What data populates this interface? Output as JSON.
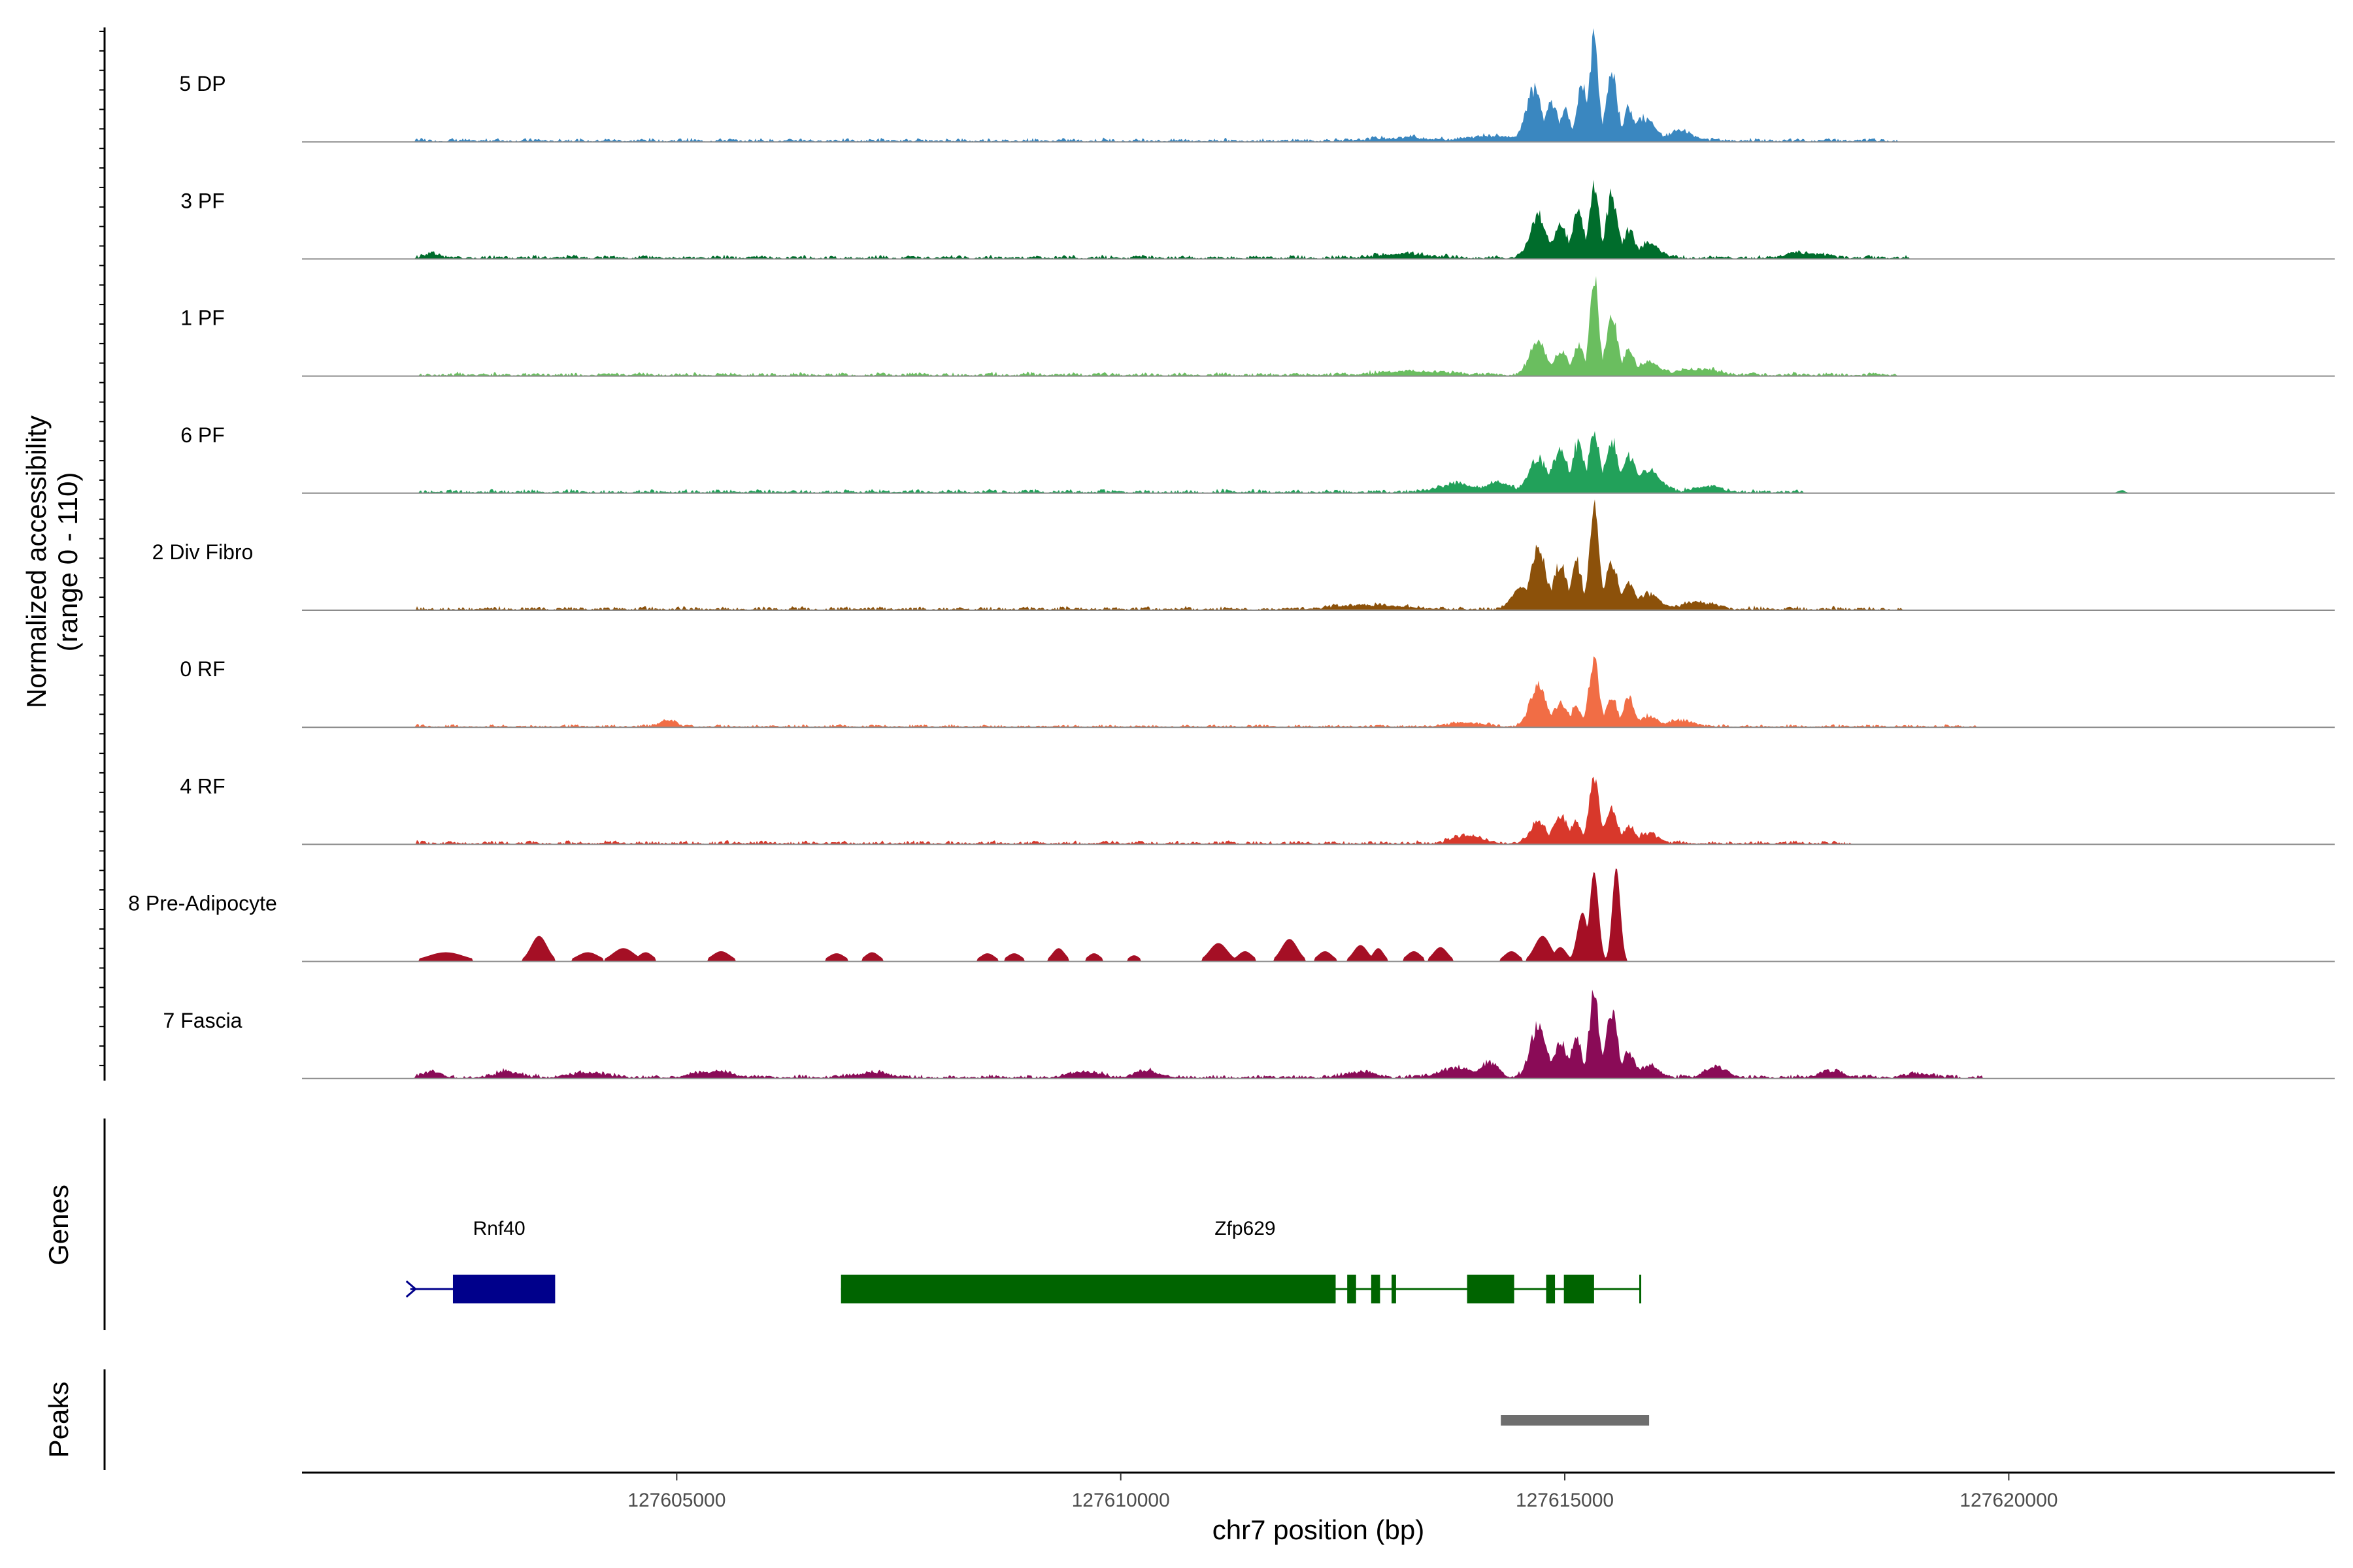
{
  "chart_data": {
    "type": "area",
    "title": "",
    "ylabel": [
      "Normalized accessibility",
      "(range 0 - 110)"
    ],
    "xlabel": "chr7 position (bp)",
    "ylim": [
      0,
      110
    ],
    "xlim": [
      127600780,
      127623670
    ],
    "xticks": [
      127605000,
      127610000,
      127615000,
      127620000
    ],
    "xtick_labels": [
      "127605000",
      "127610000",
      "127615000",
      "127620000"
    ],
    "tracks": [
      {
        "name": "5 DP",
        "color": "#3a87c0",
        "peaks": [
          [
            127613200,
            3,
            350
          ],
          [
            127614200,
            5,
            300
          ],
          [
            127614650,
            50,
            90
          ],
          [
            127614850,
            38,
            70
          ],
          [
            127615000,
            28,
            60
          ],
          [
            127615200,
            56,
            60
          ],
          [
            127615330,
            100,
            50
          ],
          [
            127615530,
            62,
            65
          ],
          [
            127615720,
            32,
            60
          ],
          [
            127615900,
            22,
            120
          ],
          [
            127616300,
            9,
            150
          ]
        ],
        "noise": [
          127602050,
          127618750,
          4
        ]
      },
      {
        "name": "3 PF",
        "color": "#006d2c",
        "peaks": [
          [
            127602250,
            5,
            80
          ],
          [
            127613200,
            4,
            300
          ],
          [
            127614700,
            43,
            90
          ],
          [
            127614950,
            32,
            80
          ],
          [
            127615150,
            42,
            70
          ],
          [
            127615330,
            70,
            55
          ],
          [
            127615530,
            60,
            65
          ],
          [
            127615720,
            26,
            70
          ],
          [
            127615950,
            14,
            110
          ],
          [
            127617700,
            5,
            200
          ]
        ],
        "noise": [
          127602050,
          127618900,
          4
        ]
      },
      {
        "name": "1 PF",
        "color": "#6abe5f",
        "peaks": [
          [
            127613300,
            4,
            350
          ],
          [
            127614700,
            34,
            90
          ],
          [
            127614950,
            22,
            80
          ],
          [
            127615160,
            30,
            60
          ],
          [
            127615330,
            92,
            50
          ],
          [
            127615530,
            62,
            60
          ],
          [
            127615720,
            24,
            70
          ],
          [
            127615950,
            12,
            140
          ],
          [
            127616500,
            6,
            200
          ]
        ],
        "noise": [
          127602100,
          127618750,
          4
        ]
      },
      {
        "name": "6 PF",
        "color": "#22a15a",
        "peaks": [
          [
            127613800,
            8,
            220
          ],
          [
            127614250,
            10,
            150
          ],
          [
            127614700,
            33,
            100
          ],
          [
            127614950,
            40,
            90
          ],
          [
            127615150,
            47,
            70
          ],
          [
            127615330,
            63,
            55
          ],
          [
            127615530,
            50,
            70
          ],
          [
            127615720,
            36,
            80
          ],
          [
            127615950,
            20,
            130
          ],
          [
            127616600,
            6,
            150
          ],
          [
            127621270,
            3,
            40
          ]
        ],
        "noise": [
          127602100,
          127617700,
          4
        ]
      },
      {
        "name": "2 Div Fibro",
        "color": "#8c510a",
        "peaks": [
          [
            127612800,
            4,
            400
          ],
          [
            127614500,
            20,
            100
          ],
          [
            127614700,
            60,
            90
          ],
          [
            127614950,
            43,
            80
          ],
          [
            127615130,
            48,
            60
          ],
          [
            127615330,
            96,
            55
          ],
          [
            127615530,
            44,
            70
          ],
          [
            127615720,
            28,
            70
          ],
          [
            127615950,
            15,
            120
          ],
          [
            127616500,
            7,
            150
          ]
        ],
        "noise": [
          127602050,
          127618800,
          4
        ]
      },
      {
        "name": "0 RF",
        "color": "#f16d45",
        "peaks": [
          [
            127604900,
            7,
            80
          ],
          [
            127613900,
            4,
            200
          ],
          [
            127614700,
            40,
            90
          ],
          [
            127614950,
            22,
            80
          ],
          [
            127615130,
            20,
            60
          ],
          [
            127615330,
            67,
            55
          ],
          [
            127615530,
            28,
            60
          ],
          [
            127615720,
            30,
            60
          ],
          [
            127615950,
            10,
            110
          ],
          [
            127616300,
            6,
            150
          ]
        ],
        "noise": [
          127602050,
          127619650,
          3
        ]
      },
      {
        "name": "4 RF",
        "color": "#d8382b",
        "peaks": [
          [
            127613900,
            8,
            150
          ],
          [
            127614700,
            22,
            90
          ],
          [
            127614950,
            26,
            80
          ],
          [
            127615130,
            20,
            60
          ],
          [
            127615330,
            65,
            55
          ],
          [
            127615530,
            32,
            70
          ],
          [
            127615720,
            16,
            70
          ],
          [
            127615950,
            10,
            110
          ]
        ],
        "noise": [
          127602050,
          127618250,
          4
        ]
      },
      {
        "name": "8 Pre-Adipocyte",
        "color": "#a50f25",
        "peaks": [
          [
            127602400,
            9,
            200
          ],
          [
            127603450,
            25,
            90
          ],
          [
            127604000,
            9,
            120
          ],
          [
            127604400,
            13,
            120
          ],
          [
            127604650,
            9,
            80
          ],
          [
            127605500,
            10,
            100
          ],
          [
            127606800,
            8,
            90
          ],
          [
            127607200,
            9,
            80
          ],
          [
            127608500,
            8,
            80
          ],
          [
            127608800,
            8,
            80
          ],
          [
            127609300,
            13,
            70
          ],
          [
            127609700,
            8,
            70
          ],
          [
            127610150,
            6,
            60
          ],
          [
            127611100,
            18,
            100
          ],
          [
            127611400,
            10,
            80
          ],
          [
            127611900,
            22,
            90
          ],
          [
            127612300,
            10,
            80
          ],
          [
            127612700,
            16,
            80
          ],
          [
            127612900,
            13,
            60
          ],
          [
            127613300,
            10,
            80
          ],
          [
            127613600,
            14,
            80
          ],
          [
            127614400,
            10,
            80
          ],
          [
            127614750,
            25,
            90
          ],
          [
            127614950,
            14,
            70
          ],
          [
            127615200,
            48,
            60
          ],
          [
            127615330,
            88,
            50
          ],
          [
            127615580,
            92,
            45
          ]
        ],
        "noise": [
          127602050,
          127616000,
          0
        ]
      },
      {
        "name": "7 Fascia",
        "color": "#8a0b57",
        "peaks": [
          [
            127602250,
            6,
            100
          ],
          [
            127603100,
            6,
            150
          ],
          [
            127604000,
            5,
            200
          ],
          [
            127605400,
            6,
            200
          ],
          [
            127607200,
            5,
            200
          ],
          [
            127609600,
            6,
            150
          ],
          [
            127610300,
            6,
            150
          ],
          [
            127612700,
            6,
            150
          ],
          [
            127613800,
            10,
            200
          ],
          [
            127614150,
            14,
            100
          ],
          [
            127614700,
            49,
            90
          ],
          [
            127614950,
            32,
            80
          ],
          [
            127615130,
            40,
            60
          ],
          [
            127615330,
            80,
            55
          ],
          [
            127615530,
            62,
            65
          ],
          [
            127615720,
            24,
            70
          ],
          [
            127615950,
            12,
            110
          ],
          [
            127616700,
            10,
            120
          ],
          [
            127618000,
            6,
            150
          ],
          [
            127619000,
            4,
            150
          ]
        ],
        "noise": [
          127602050,
          127619700,
          4
        ]
      }
    ],
    "genes": [
      {
        "name": "Rnf40",
        "color": "#00008b",
        "start": 127602000,
        "end": 127603620,
        "exons": [
          [
            127602480,
            127603620
          ]
        ]
      },
      {
        "name": "Zfp629",
        "color": "#006400",
        "start": 127606850,
        "end": 127615850,
        "exons": [
          [
            127606850,
            127612420
          ],
          [
            127612550,
            127612650
          ],
          [
            127612820,
            127612920
          ],
          [
            127613050,
            127613100
          ],
          [
            127613900,
            127614430
          ],
          [
            127614790,
            127614890
          ],
          [
            127614990,
            127615330
          ]
        ]
      }
    ],
    "peaks_track": [
      [
        127614280,
        127615950
      ]
    ],
    "gene_label": "Genes",
    "peaks_label": "Peaks"
  }
}
